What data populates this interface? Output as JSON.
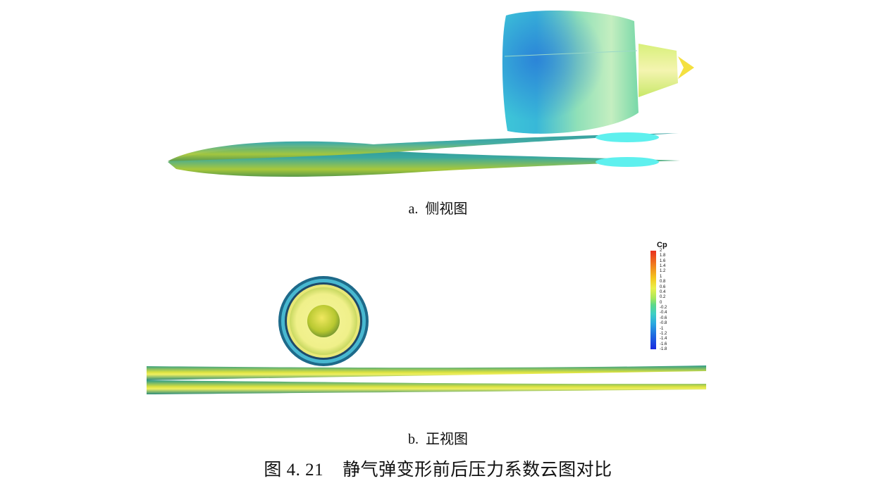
{
  "figure": {
    "sub_a_caption": "a.  侧视图",
    "sub_b_caption": "b.  正视图",
    "title": "图 4. 21    静气弹变形前后压力系数云图对比"
  },
  "legend": {
    "title": "Cp",
    "ticks": [
      "2",
      "1.8",
      "1.6",
      "1.4",
      "1.2",
      "1",
      "0.8",
      "0.6",
      "0.4",
      "0.2",
      "0",
      "-0.2",
      "-0.4",
      "-0.6",
      "-0.8",
      "-1",
      "-1.2",
      "-1.4",
      "-1.6",
      "-1.8"
    ],
    "colors": [
      "#e8301e",
      "#f4c81e",
      "#a8e85a",
      "#3ecfc4",
      "#1e6ae0",
      "#1a2ae0"
    ]
  }
}
